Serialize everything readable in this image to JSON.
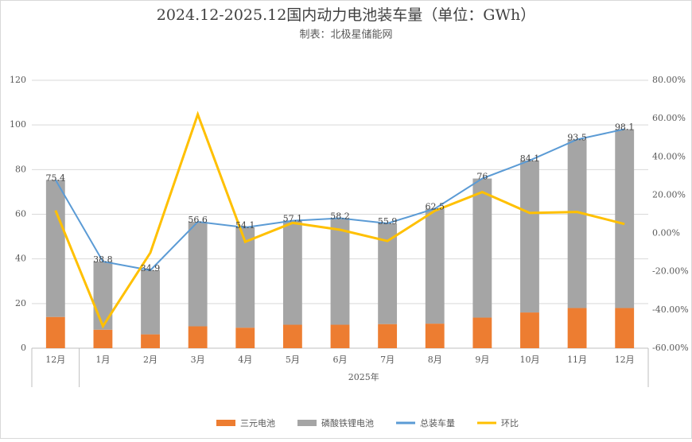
{
  "chart_data": {
    "type": "combo",
    "title": "2024.12-2025.12国内动力电池装车量（单位：GWh）",
    "subtitle": "制表：北极星储能网",
    "categories": [
      "12月",
      "1月",
      "2月",
      "3月",
      "4月",
      "5月",
      "6月",
      "7月",
      "8月",
      "9月",
      "10月",
      "11月",
      "12月"
    ],
    "x_group": "2025年",
    "series": [
      {
        "name": "三元电池",
        "color": "#ED7D31",
        "kind": "bar",
        "values": [
          14,
          8.3,
          6.2,
          9.8,
          9.2,
          10.5,
          10.5,
          10.8,
          11,
          13.7,
          16,
          18,
          18
        ]
      },
      {
        "name": "磷酸铁锂电池",
        "color": "#A5A5A5",
        "kind": "bar",
        "values": [
          61.4,
          30.5,
          28.7,
          46.8,
          44.9,
          46.6,
          47.7,
          45.1,
          51.5,
          62.3,
          68.1,
          75.5,
          80.1
        ]
      },
      {
        "name": "总装车量",
        "color": "#5B9BD5",
        "kind": "line",
        "values": [
          75.4,
          38.8,
          34.9,
          56.6,
          54.1,
          57.1,
          58.2,
          55.9,
          62.5,
          76,
          84.1,
          93.5,
          98.1
        ]
      },
      {
        "name": "环比",
        "color": "#FFC000",
        "kind": "line",
        "axis": "y2",
        "values": [
          12,
          -48.5,
          -10.1,
          62.2,
          -4.4,
          5.5,
          1.9,
          -4,
          11.8,
          21.6,
          10.7,
          11.2,
          4.9
        ]
      }
    ],
    "ylim": [
      0,
      120
    ],
    "yticks": [
      0,
      20,
      40,
      60,
      80,
      100,
      120
    ],
    "y2lim": [
      -60,
      80
    ],
    "y2ticks": [
      {
        "value": -60,
        "label": "-60.00%"
      },
      {
        "value": -40,
        "label": "-40.00%"
      },
      {
        "value": -20,
        "label": "-20.00%"
      },
      {
        "value": 0,
        "label": "0.00%"
      },
      {
        "value": 20,
        "label": "20.00%"
      },
      {
        "value": 40,
        "label": "40.00%"
      },
      {
        "value": 60,
        "label": "60.00%"
      },
      {
        "value": 80,
        "label": "80.00%"
      }
    ],
    "grid": true
  }
}
